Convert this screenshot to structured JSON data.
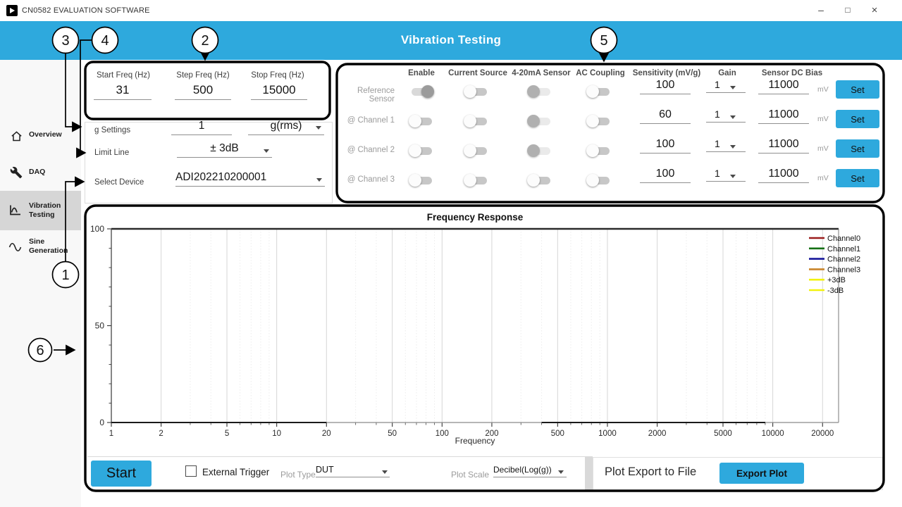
{
  "window": {
    "title": "CN0582 EVALUATION SOFTWARE",
    "controls": {
      "minimize": "–",
      "maximize": "□",
      "close": "×"
    }
  },
  "header": {
    "title": "Vibration Testing"
  },
  "sidebar": {
    "items": [
      {
        "icon": "home-icon",
        "lines": [
          "Overview"
        ]
      },
      {
        "icon": "wrench-icon",
        "lines": [
          "DAQ"
        ]
      },
      {
        "icon": "frequency-plot-icon",
        "lines": [
          "Vibration",
          "Testing"
        ],
        "selected": true
      },
      {
        "icon": "sine-wave-icon",
        "lines": [
          "Sine",
          "Generation"
        ]
      }
    ]
  },
  "sweep": {
    "start_label": "Start Freq (Hz)",
    "start_value": "31",
    "step_label": "Step Freq (Hz)",
    "step_value": "500",
    "stop_label": "Stop Freq (Hz)",
    "stop_value": "15000"
  },
  "settings": {
    "g_label": "g Settings",
    "g_value": "1",
    "g_unit": "g(rms)",
    "limit_label": "Limit Line",
    "limit_value": "± 3dB",
    "device_label": "Select Device",
    "device_value": "ADI202210200001"
  },
  "sensor_panel": {
    "headers": {
      "enable": "Enable",
      "current_source": "Current Source",
      "sensor_420": "4-20mA Sensor",
      "ac_coupling": "AC Coupling",
      "sensitivity": "Sensitivity (mV/g)",
      "gain": "Gain",
      "dc_bias": "Sensor DC Bias"
    },
    "set_label": "Set",
    "bias_unit": "mV",
    "rows": [
      {
        "label": "Reference Sensor",
        "enable": "on",
        "current_source": "off",
        "sensor_420": "disabled",
        "ac_coupling": "off",
        "sensitivity": "100",
        "gain": "1",
        "bias": "11000"
      },
      {
        "label": "@ Channel 1",
        "enable": "off",
        "current_source": "off",
        "sensor_420": "disabled",
        "ac_coupling": "off",
        "sensitivity": "60",
        "gain": "1",
        "bias": "11000"
      },
      {
        "label": "@ Channel 2",
        "enable": "off",
        "current_source": "off",
        "sensor_420": "disabled",
        "ac_coupling": "off",
        "sensitivity": "100",
        "gain": "1",
        "bias": "11000"
      },
      {
        "label": "@ Channel 3",
        "enable": "off",
        "current_source": "off",
        "sensor_420": "off",
        "ac_coupling": "off",
        "sensitivity": "100",
        "gain": "1",
        "bias": "11000"
      }
    ]
  },
  "chart_data": {
    "type": "line",
    "title": "Frequency Response",
    "xlabel": "Frequency",
    "ylabel": "",
    "x_scale": "log",
    "xlim": [
      1,
      25000
    ],
    "ylim": [
      0,
      100
    ],
    "x_major_ticks": [
      1,
      2,
      5,
      10,
      20,
      50,
      100,
      200,
      500,
      1000,
      2000,
      5000,
      10000,
      20000
    ],
    "y_major_ticks": [
      0,
      50,
      100
    ],
    "y_minor_step": 10,
    "grid": "vertical-log",
    "legend_position": "right-outside",
    "series": [
      {
        "name": "Channel0",
        "color": "#9b1c1c",
        "values": []
      },
      {
        "name": "Channel1",
        "color": "#157015",
        "values": []
      },
      {
        "name": "Channel2",
        "color": "#17179b",
        "values": []
      },
      {
        "name": "Channel3",
        "color": "#c8842a",
        "values": []
      },
      {
        "name": "+3dB",
        "color": "#f2f20e",
        "values": []
      },
      {
        "name": "-3dB",
        "color": "#f2f20e",
        "values": []
      }
    ]
  },
  "footer": {
    "start_label": "Start",
    "external_trigger_label": "External Trigger",
    "external_trigger_checked": false,
    "plot_type_label": "Plot Type",
    "plot_type_value": "DUT",
    "plot_scale_label": "Plot Scale",
    "plot_scale_value": "Decibel(Log(g))",
    "export_label": "Plot Export to File",
    "export_button_label": "Export Plot"
  },
  "callouts": {
    "c1": "1",
    "c2": "2",
    "c3": "3",
    "c4": "4",
    "c5": "5",
    "c6": "6"
  },
  "colors": {
    "accent": "#2EA9DD",
    "annotation": "#000000",
    "sidebar_selected": "#d6d6d6"
  }
}
